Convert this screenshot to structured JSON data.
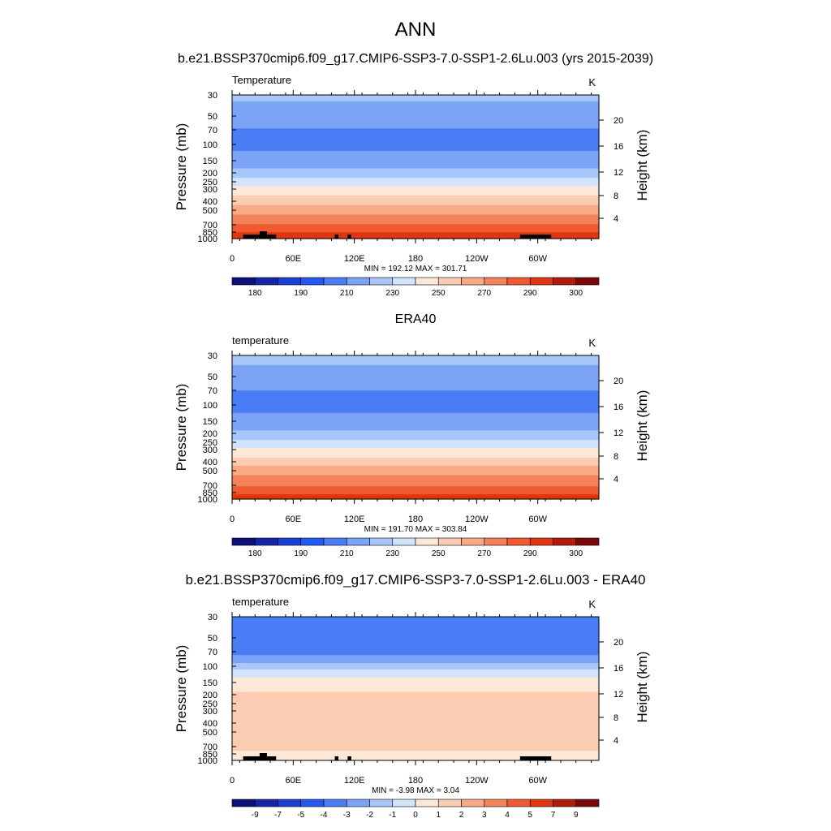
{
  "figure": {
    "title": "ANN",
    "legend_placement": "below each panel"
  },
  "colormap": [
    "#0c0f76",
    "#1226a8",
    "#1a3fd3",
    "#2459f2",
    "#4a7cf5",
    "#7ba4f7",
    "#a9c6fa",
    "#d2e3fc",
    "#fde8d8",
    "#fbccb1",
    "#f8a985",
    "#f3815a",
    "#ef5a30",
    "#e03512",
    "#b01b0a",
    "#7d0707"
  ],
  "chart_data": [
    {
      "type": "heatmap",
      "title": "b.e21.BSSP370cmip6.f09_g17.CMIP6-SSP3-7.0-SSP1-2.6Lu.003 (yrs 2015-2039)",
      "left_label": "Temperature",
      "units": "K",
      "ylabel": "Pressure (mb)",
      "ylabel_right": "Height (km)",
      "x_ticks": [
        "0",
        "60E",
        "120E",
        "180",
        "120W",
        "60W"
      ],
      "y_ticks": [
        "30",
        "50",
        "70",
        "100",
        "150",
        "200",
        "250",
        "300",
        "400",
        "500",
        "700",
        "850",
        "1000"
      ],
      "right_ticks": [
        "4",
        "8",
        "12",
        "16",
        "20"
      ],
      "stats": "MIN = 192.12  MAX = 301.71",
      "colorbar_labels": [
        "180",
        "190",
        "210",
        "230",
        "250",
        "270",
        "290",
        "300"
      ],
      "profile": [
        [
          30,
          212
        ],
        [
          50,
          206
        ],
        [
          70,
          199
        ],
        [
          100,
          197
        ],
        [
          150,
          204
        ],
        [
          200,
          214
        ],
        [
          250,
          224
        ],
        [
          300,
          233
        ],
        [
          400,
          246
        ],
        [
          500,
          256
        ],
        [
          700,
          270
        ],
        [
          850,
          279
        ],
        [
          1000,
          289
        ]
      ],
      "terrain": true
    },
    {
      "type": "heatmap",
      "title": "ERA40",
      "left_label": "temperature",
      "units": "K",
      "ylabel": "Pressure (mb)",
      "ylabel_right": "Height (km)",
      "x_ticks": [
        "0",
        "60E",
        "120E",
        "180",
        "120W",
        "60W"
      ],
      "y_ticks": [
        "30",
        "50",
        "70",
        "100",
        "150",
        "200",
        "250",
        "300",
        "400",
        "500",
        "700",
        "850",
        "1000"
      ],
      "right_ticks": [
        "4",
        "8",
        "12",
        "16",
        "20"
      ],
      "stats": "MIN = 191.70  MAX = 303.84",
      "colorbar_labels": [
        "180",
        "190",
        "210",
        "230",
        "250",
        "270",
        "290",
        "300"
      ],
      "profile": [
        [
          30,
          213
        ],
        [
          50,
          206
        ],
        [
          70,
          200
        ],
        [
          100,
          197
        ],
        [
          150,
          203
        ],
        [
          200,
          213
        ],
        [
          250,
          223
        ],
        [
          300,
          232
        ],
        [
          400,
          245
        ],
        [
          500,
          255
        ],
        [
          700,
          269
        ],
        [
          850,
          278
        ],
        [
          1000,
          288
        ]
      ],
      "terrain": false
    },
    {
      "type": "heatmap",
      "title": "b.e21.BSSP370cmip6.f09_g17.CMIP6-SSP3-7.0-SSP1-2.6Lu.003 - ERA40",
      "left_label": "temperature",
      "units": "K",
      "ylabel": "Pressure (mb)",
      "ylabel_right": "Height (km)",
      "x_ticks": [
        "0",
        "60E",
        "120E",
        "180",
        "120W",
        "60W"
      ],
      "y_ticks": [
        "30",
        "50",
        "70",
        "100",
        "150",
        "200",
        "250",
        "300",
        "400",
        "500",
        "700",
        "850",
        "1000"
      ],
      "right_ticks": [
        "4",
        "8",
        "12",
        "16",
        "20"
      ],
      "stats": "MIN =  -3.98  MAX =   3.04",
      "colorbar_labels": [
        "-9",
        "-7",
        "-5",
        "-4",
        "-3",
        "-2",
        "-1",
        "0",
        "1",
        "2",
        "3",
        "4",
        "5",
        "7",
        "9"
      ],
      "profile": [
        [
          30,
          -4
        ],
        [
          50,
          -3.8
        ],
        [
          70,
          -3.6
        ],
        [
          100,
          -1.5
        ],
        [
          150,
          0.6
        ],
        [
          200,
          1.1
        ],
        [
          250,
          1.5
        ],
        [
          300,
          1.8
        ],
        [
          400,
          2.0
        ],
        [
          500,
          1.8
        ],
        [
          700,
          1.3
        ],
        [
          850,
          0.8
        ],
        [
          1000,
          0.6
        ]
      ],
      "terrain": true
    }
  ]
}
